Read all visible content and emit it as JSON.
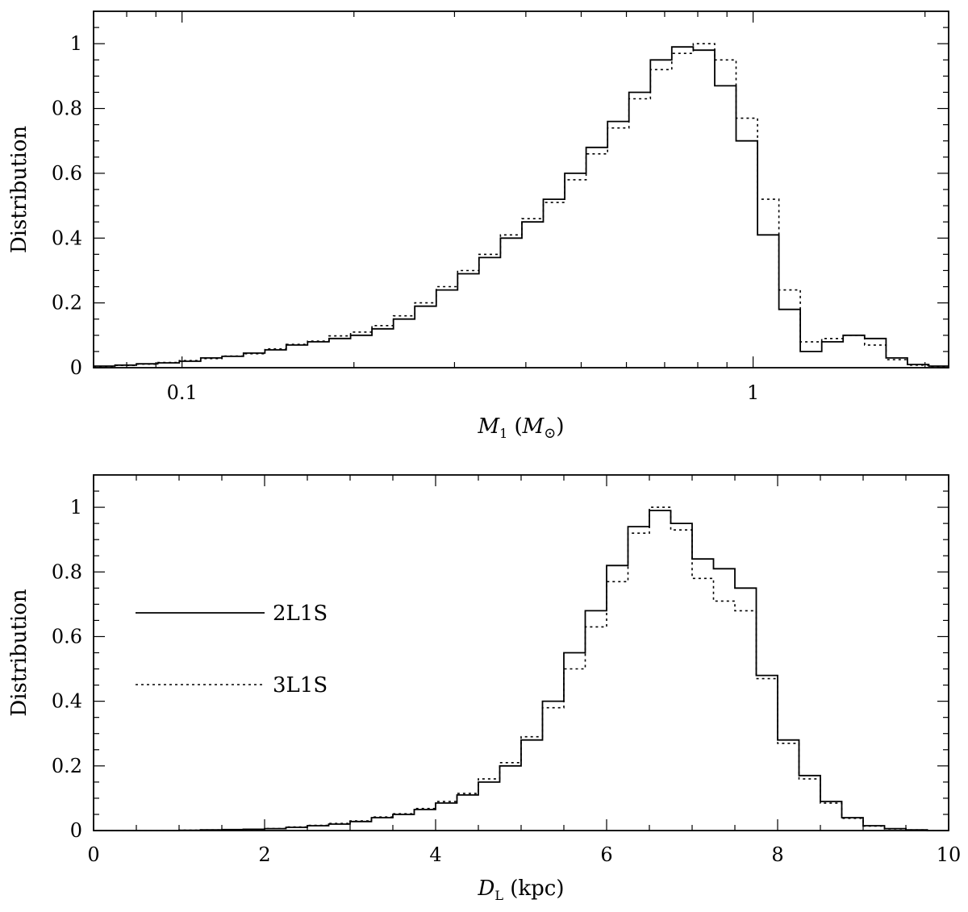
{
  "chart_data": [
    {
      "type": "histogram",
      "xscale": "log",
      "xlim": [
        0.07,
        2.2
      ],
      "ylim": [
        0,
        1.1
      ],
      "xlabel_main": "M",
      "xlabel_sub": "1",
      "xlabel_unit_open": " (",
      "xlabel_unit": "M",
      "xlabel_unit_sub": "⊙",
      "xlabel_unit_close": ")",
      "ylabel": "Distribution",
      "xtick_labels": [
        {
          "value": 0.1,
          "label": "0.1"
        },
        {
          "value": 1,
          "label": "1"
        }
      ],
      "ytick_labels": [
        {
          "value": 0,
          "label": "0"
        },
        {
          "value": 0.2,
          "label": "0.2"
        },
        {
          "value": 0.4,
          "label": "0.4"
        },
        {
          "value": 0.6,
          "label": "0.6"
        },
        {
          "value": 0.8,
          "label": "0.8"
        },
        {
          "value": 1,
          "label": "1"
        }
      ],
      "bin_edges": [
        0.07,
        0.0763,
        0.0832,
        0.0907,
        0.0989,
        0.1078,
        0.1175,
        0.1281,
        0.1397,
        0.1522,
        0.1659,
        0.1809,
        0.1973,
        0.2151,
        0.2345,
        0.2556,
        0.2787,
        0.3038,
        0.3312,
        0.3611,
        0.3937,
        0.4292,
        0.4679,
        0.5101,
        0.5561,
        0.6063,
        0.661,
        0.7205,
        0.7855,
        0.8565,
        0.9337,
        1.018,
        1.1097,
        1.2098,
        1.319,
        1.4379,
        1.5676,
        1.709,
        1.8632,
        2.031,
        2.2
      ],
      "series": [
        {
          "name": "2L1S",
          "style": "solid",
          "values": [
            0.005,
            0.008,
            0.012,
            0.015,
            0.02,
            0.03,
            0.035,
            0.045,
            0.055,
            0.07,
            0.08,
            0.09,
            0.1,
            0.12,
            0.15,
            0.19,
            0.24,
            0.29,
            0.34,
            0.4,
            0.45,
            0.52,
            0.6,
            0.68,
            0.76,
            0.85,
            0.95,
            0.99,
            0.98,
            0.87,
            0.7,
            0.41,
            0.18,
            0.05,
            0.08,
            0.1,
            0.09,
            0.03,
            0.01,
            0.005
          ]
        },
        {
          "name": "3L1S",
          "style": "dotted",
          "values": [
            0.004,
            0.007,
            0.011,
            0.016,
            0.022,
            0.028,
            0.036,
            0.043,
            0.058,
            0.072,
            0.082,
            0.098,
            0.11,
            0.13,
            0.16,
            0.2,
            0.25,
            0.3,
            0.35,
            0.41,
            0.46,
            0.51,
            0.58,
            0.66,
            0.74,
            0.83,
            0.92,
            0.97,
            1.0,
            0.95,
            0.77,
            0.52,
            0.24,
            0.08,
            0.09,
            0.1,
            0.07,
            0.025,
            0.008,
            0.004
          ]
        }
      ]
    },
    {
      "type": "histogram",
      "xscale": "linear",
      "xlim": [
        0,
        10
      ],
      "ylim": [
        0,
        1.1
      ],
      "xlabel_main": "D",
      "xlabel_sub": "L",
      "xlabel_unit_open": " (kpc)",
      "xlabel_unit": "",
      "xlabel_unit_sub": "",
      "xlabel_unit_close": "",
      "ylabel": "Distribution",
      "xtick_labels": [
        {
          "value": 0,
          "label": "0"
        },
        {
          "value": 2,
          "label": "2"
        },
        {
          "value": 4,
          "label": "4"
        },
        {
          "value": 6,
          "label": "6"
        },
        {
          "value": 8,
          "label": "8"
        },
        {
          "value": 10,
          "label": "10"
        }
      ],
      "ytick_labels": [
        {
          "value": 0,
          "label": "0"
        },
        {
          "value": 0.2,
          "label": "0.2"
        },
        {
          "value": 0.4,
          "label": "0.4"
        },
        {
          "value": 0.6,
          "label": "0.6"
        },
        {
          "value": 0.8,
          "label": "0.8"
        },
        {
          "value": 1,
          "label": "1"
        }
      ],
      "bin_edges": [
        0,
        0.25,
        0.5,
        0.75,
        1,
        1.25,
        1.5,
        1.75,
        2,
        2.25,
        2.5,
        2.75,
        3,
        3.25,
        3.5,
        3.75,
        4,
        4.25,
        4.5,
        4.75,
        5,
        5.25,
        5.5,
        5.75,
        6,
        6.25,
        6.5,
        6.75,
        7,
        7.25,
        7.5,
        7.75,
        8,
        8.25,
        8.5,
        8.75,
        9,
        9.25,
        9.5,
        9.75,
        10
      ],
      "series": [
        {
          "name": "2L1S",
          "style": "solid",
          "values": [
            0.0,
            0.0,
            0.0,
            0.0,
            0.001,
            0.002,
            0.003,
            0.004,
            0.006,
            0.01,
            0.015,
            0.02,
            0.028,
            0.04,
            0.05,
            0.065,
            0.085,
            0.11,
            0.15,
            0.2,
            0.28,
            0.4,
            0.55,
            0.68,
            0.82,
            0.94,
            0.99,
            0.95,
            0.84,
            0.81,
            0.75,
            0.48,
            0.28,
            0.17,
            0.09,
            0.04,
            0.015,
            0.006,
            0.002,
            0.0
          ]
        },
        {
          "name": "3L1S",
          "style": "dotted",
          "values": [
            0.0,
            0.0,
            0.0,
            0.0,
            0.001,
            0.002,
            0.003,
            0.004,
            0.006,
            0.011,
            0.016,
            0.022,
            0.03,
            0.042,
            0.052,
            0.068,
            0.09,
            0.115,
            0.16,
            0.21,
            0.29,
            0.38,
            0.5,
            0.63,
            0.77,
            0.92,
            1.0,
            0.93,
            0.78,
            0.71,
            0.68,
            0.47,
            0.27,
            0.16,
            0.085,
            0.038,
            0.014,
            0.005,
            0.002,
            0.0
          ]
        }
      ],
      "legend": {
        "position": "left-middle",
        "entries": [
          {
            "label": "2L1S",
            "style": "solid"
          },
          {
            "label": "3L1S",
            "style": "dotted"
          }
        ]
      }
    }
  ]
}
